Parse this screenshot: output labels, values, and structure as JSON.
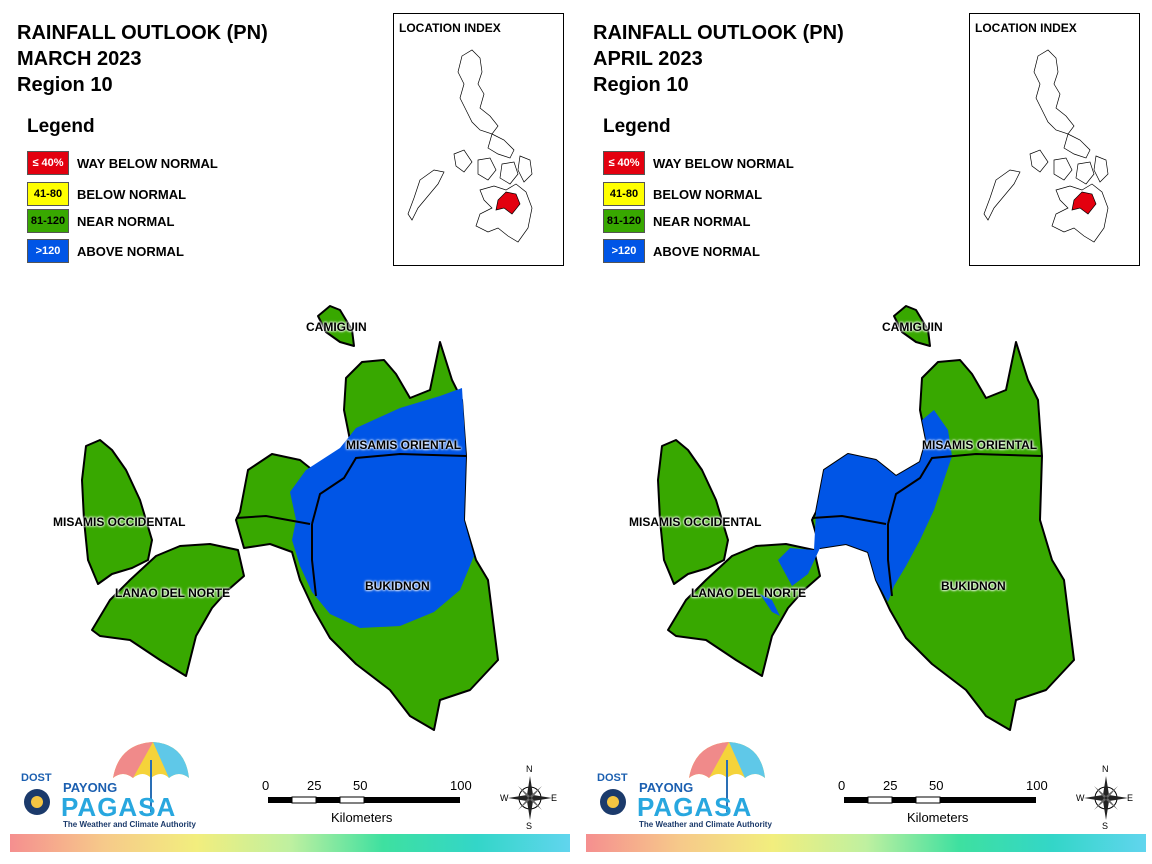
{
  "panels": [
    {
      "title": "RAINFALL OUTLOOK (PN)",
      "month": "MARCH 2023",
      "region": "Region 10",
      "variant": "march"
    },
    {
      "title": "RAINFALL OUTLOOK (PN)",
      "month": "APRIL 2023",
      "region": "Region 10",
      "variant": "april"
    }
  ],
  "legend": {
    "title": "Legend",
    "items": [
      {
        "range": "≤ 40%",
        "label": "WAY BELOW NORMAL",
        "color": "#e3000f",
        "text_color": "#ffffff"
      },
      {
        "range": "41-80",
        "label": "BELOW NORMAL",
        "color": "#ffff00",
        "text_color": "#000000"
      },
      {
        "range": "81-120",
        "label": "NEAR NORMAL",
        "color": "#38a800",
        "text_color": "#000000"
      },
      {
        "range": ">120",
        "label": "ABOVE NORMAL",
        "color": "#0055e6",
        "text_color": "#ffffff"
      }
    ]
  },
  "location_index": {
    "label": "LOCATION INDEX",
    "highlight_color": "#e3000f"
  },
  "places": {
    "camiguin": "CAMIGUIN",
    "misamis_oriental": "MISAMIS ORIENTAL",
    "misamis_occidental": "MISAMIS OCCIDENTAL",
    "lanao_del_norte": "LANAO DEL NORTE",
    "bukidnon": "BUKIDNON"
  },
  "scale_bar": {
    "ticks": [
      "0",
      "25",
      "50",
      "100"
    ],
    "unit": "Kilometers"
  },
  "compass": {
    "n": "N",
    "s": "S",
    "e": "E",
    "w": "W"
  },
  "logo": {
    "dost": "DOST",
    "payong": "PAYONG",
    "pagasa": "PAGASA",
    "tagline": "The Weather and Climate Authority"
  },
  "colors": {
    "near_normal": "#38a800",
    "above_normal": "#0055e6",
    "border": "#000000"
  }
}
